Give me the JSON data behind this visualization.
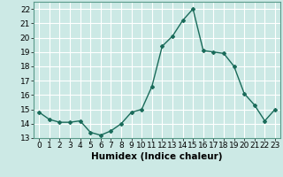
{
  "x": [
    0,
    1,
    2,
    3,
    4,
    5,
    6,
    7,
    8,
    9,
    10,
    11,
    12,
    13,
    14,
    15,
    16,
    17,
    18,
    19,
    20,
    21,
    22,
    23
  ],
  "y": [
    14.8,
    14.3,
    14.1,
    14.1,
    14.2,
    13.4,
    13.2,
    13.5,
    14.0,
    14.8,
    15.0,
    16.6,
    19.4,
    20.1,
    21.2,
    22.0,
    19.1,
    19.0,
    18.9,
    18.0,
    16.1,
    15.3,
    14.2,
    15.0
  ],
  "line_color": "#1a6b5a",
  "marker": "D",
  "marker_size": 2.0,
  "bg_color": "#cce9e5",
  "grid_color": "#ffffff",
  "xlabel": "Humidex (Indice chaleur)",
  "xlim": [
    -0.5,
    23.5
  ],
  "ylim": [
    13,
    22.5
  ],
  "yticks": [
    13,
    14,
    15,
    16,
    17,
    18,
    19,
    20,
    21,
    22
  ],
  "xticks": [
    0,
    1,
    2,
    3,
    4,
    5,
    6,
    7,
    8,
    9,
    10,
    11,
    12,
    13,
    14,
    15,
    16,
    17,
    18,
    19,
    20,
    21,
    22,
    23
  ],
  "tick_label_fontsize": 6.5,
  "xlabel_fontsize": 7.5,
  "linewidth": 1.0
}
